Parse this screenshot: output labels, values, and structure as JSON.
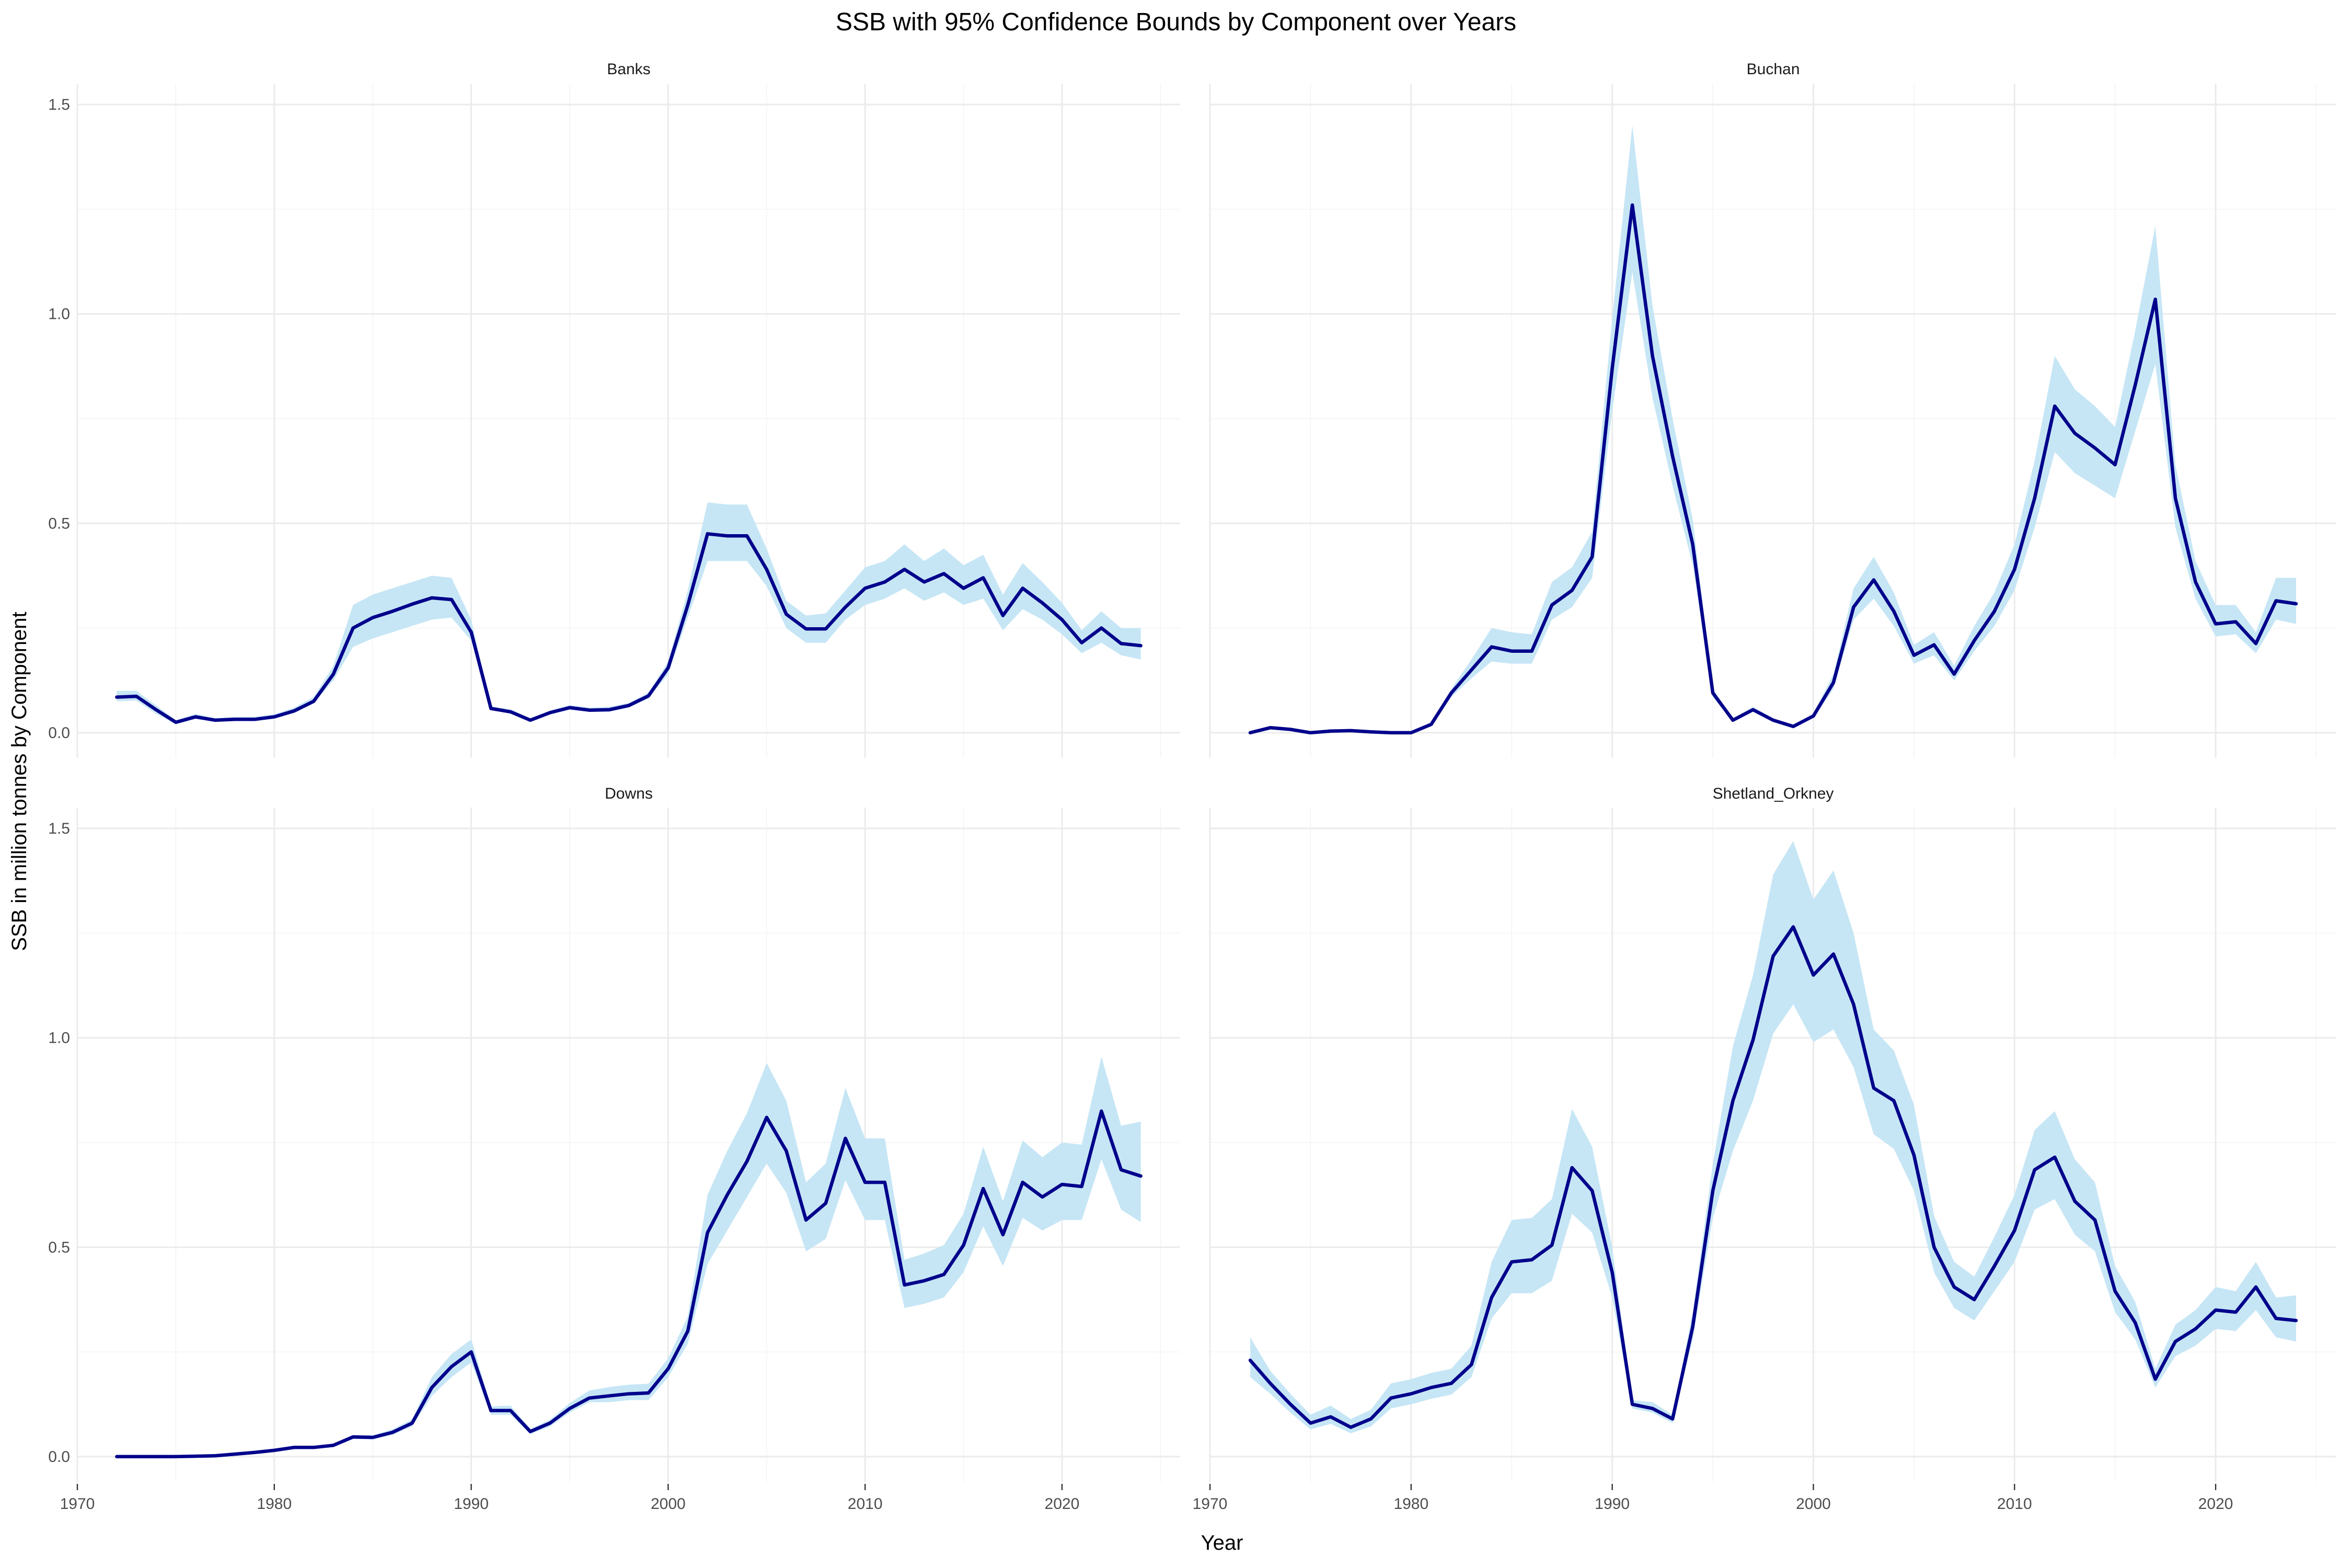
{
  "chart_data": {
    "type": "line",
    "title": "SSB with 95% Confidence Bounds by Component over Years",
    "xlabel": "Year",
    "ylabel": "SSB in million tonnes by Component",
    "xlim": [
      1970,
      2026
    ],
    "ylim": [
      -0.06,
      1.55
    ],
    "x_ticks": [
      1970,
      1980,
      1990,
      2000,
      2010,
      2020
    ],
    "y_ticks": [
      0.0,
      0.5,
      1.0,
      1.5
    ],
    "y_tick_labels": [
      "0.0",
      "0.5",
      "1.0",
      "1.5"
    ],
    "grid": true,
    "colors": {
      "line": "#00008b",
      "band": "#c6e6f5"
    },
    "years": [
      1972,
      1973,
      1974,
      1975,
      1976,
      1977,
      1978,
      1979,
      1980,
      1981,
      1982,
      1983,
      1984,
      1985,
      1986,
      1987,
      1988,
      1989,
      1990,
      1991,
      1992,
      1993,
      1994,
      1995,
      1996,
      1997,
      1998,
      1999,
      2000,
      2001,
      2002,
      2003,
      2004,
      2005,
      2006,
      2007,
      2008,
      2009,
      2010,
      2011,
      2012,
      2013,
      2014,
      2015,
      2016,
      2017,
      2018,
      2019,
      2020,
      2021,
      2022,
      2023,
      2024
    ],
    "panels": [
      {
        "name": "Banks",
        "values": [
          0.085,
          0.087,
          0.055,
          0.025,
          0.038,
          0.03,
          0.032,
          0.032,
          0.038,
          0.052,
          0.075,
          0.14,
          0.25,
          0.275,
          0.29,
          0.307,
          0.322,
          0.318,
          0.24,
          0.058,
          0.05,
          0.03,
          0.048,
          0.06,
          0.054,
          0.055,
          0.065,
          0.088,
          0.155,
          0.305,
          0.475,
          0.47,
          0.47,
          0.39,
          0.283,
          0.248,
          0.248,
          0.3,
          0.345,
          0.36,
          0.39,
          0.36,
          0.38,
          0.345,
          0.37,
          0.28,
          0.345,
          0.31,
          0.27,
          0.215,
          0.25,
          0.213,
          0.208
        ],
        "lower": [
          0.075,
          0.077,
          0.045,
          0.02,
          0.033,
          0.026,
          0.028,
          0.028,
          0.034,
          0.047,
          0.07,
          0.125,
          0.205,
          0.225,
          0.24,
          0.255,
          0.27,
          0.275,
          0.22,
          0.054,
          0.046,
          0.027,
          0.044,
          0.055,
          0.05,
          0.05,
          0.06,
          0.082,
          0.14,
          0.275,
          0.41,
          0.41,
          0.41,
          0.35,
          0.25,
          0.215,
          0.215,
          0.27,
          0.305,
          0.32,
          0.345,
          0.315,
          0.335,
          0.305,
          0.32,
          0.245,
          0.295,
          0.27,
          0.235,
          0.19,
          0.215,
          0.185,
          0.175
        ],
        "upper": [
          0.1,
          0.1,
          0.065,
          0.03,
          0.045,
          0.035,
          0.038,
          0.038,
          0.044,
          0.06,
          0.085,
          0.16,
          0.305,
          0.33,
          0.345,
          0.36,
          0.375,
          0.37,
          0.27,
          0.063,
          0.056,
          0.034,
          0.053,
          0.066,
          0.06,
          0.062,
          0.071,
          0.096,
          0.17,
          0.34,
          0.55,
          0.545,
          0.545,
          0.44,
          0.315,
          0.28,
          0.285,
          0.34,
          0.395,
          0.41,
          0.45,
          0.41,
          0.44,
          0.4,
          0.425,
          0.33,
          0.405,
          0.36,
          0.31,
          0.245,
          0.29,
          0.25,
          0.25
        ]
      },
      {
        "name": "Buchan",
        "values": [
          0.0,
          0.012,
          0.008,
          0.0,
          0.004,
          0.005,
          0.002,
          0.0,
          0.0,
          0.02,
          0.095,
          0.15,
          0.205,
          0.195,
          0.195,
          0.305,
          0.34,
          0.42,
          0.87,
          1.26,
          0.9,
          0.66,
          0.45,
          0.095,
          0.03,
          0.055,
          0.03,
          0.015,
          0.04,
          0.12,
          0.3,
          0.365,
          0.29,
          0.185,
          0.21,
          0.14,
          0.22,
          0.29,
          0.39,
          0.56,
          0.78,
          0.715,
          0.68,
          0.64,
          0.83,
          1.035,
          0.56,
          0.36,
          0.26,
          0.265,
          0.213,
          0.315,
          0.308
        ],
        "lower": [
          0.0,
          0.01,
          0.007,
          0.0,
          0.003,
          0.004,
          0.001,
          0.0,
          0.0,
          0.018,
          0.085,
          0.13,
          0.17,
          0.165,
          0.165,
          0.27,
          0.3,
          0.37,
          0.77,
          1.1,
          0.8,
          0.59,
          0.4,
          0.085,
          0.027,
          0.05,
          0.027,
          0.013,
          0.035,
          0.105,
          0.27,
          0.32,
          0.255,
          0.165,
          0.185,
          0.125,
          0.195,
          0.255,
          0.34,
          0.49,
          0.67,
          0.62,
          0.59,
          0.56,
          0.72,
          0.88,
          0.49,
          0.32,
          0.23,
          0.235,
          0.19,
          0.27,
          0.26
        ],
        "upper": [
          0.0,
          0.014,
          0.01,
          0.0,
          0.005,
          0.006,
          0.003,
          0.0,
          0.0,
          0.023,
          0.105,
          0.175,
          0.25,
          0.24,
          0.235,
          0.36,
          0.395,
          0.48,
          0.99,
          1.45,
          1.02,
          0.75,
          0.51,
          0.105,
          0.034,
          0.062,
          0.034,
          0.017,
          0.046,
          0.14,
          0.345,
          0.42,
          0.335,
          0.21,
          0.24,
          0.16,
          0.255,
          0.335,
          0.45,
          0.65,
          0.9,
          0.82,
          0.78,
          0.73,
          0.96,
          1.21,
          0.64,
          0.41,
          0.305,
          0.305,
          0.24,
          0.37,
          0.37
        ]
      },
      {
        "name": "Downs",
        "values": [
          0.0,
          0.0,
          0.0,
          0.0,
          0.001,
          0.002,
          0.006,
          0.01,
          0.015,
          0.022,
          0.022,
          0.027,
          0.047,
          0.046,
          0.058,
          0.08,
          0.165,
          0.215,
          0.25,
          0.11,
          0.11,
          0.06,
          0.08,
          0.115,
          0.14,
          0.145,
          0.15,
          0.152,
          0.21,
          0.3,
          0.535,
          0.625,
          0.705,
          0.81,
          0.73,
          0.565,
          0.605,
          0.76,
          0.655,
          0.655,
          0.41,
          0.42,
          0.435,
          0.505,
          0.64,
          0.53,
          0.655,
          0.62,
          0.65,
          0.645,
          0.825,
          0.685,
          0.67
        ],
        "lower": [
          0.0,
          0.0,
          0.0,
          0.0,
          0.001,
          0.002,
          0.005,
          0.009,
          0.013,
          0.02,
          0.02,
          0.024,
          0.042,
          0.041,
          0.052,
          0.072,
          0.145,
          0.19,
          0.225,
          0.1,
          0.1,
          0.054,
          0.072,
          0.105,
          0.13,
          0.13,
          0.135,
          0.135,
          0.19,
          0.27,
          0.46,
          0.54,
          0.62,
          0.7,
          0.63,
          0.49,
          0.52,
          0.66,
          0.565,
          0.565,
          0.355,
          0.365,
          0.38,
          0.44,
          0.55,
          0.455,
          0.57,
          0.54,
          0.565,
          0.565,
          0.71,
          0.59,
          0.56
        ],
        "upper": [
          0.0,
          0.0,
          0.0,
          0.0,
          0.001,
          0.002,
          0.007,
          0.011,
          0.017,
          0.024,
          0.025,
          0.03,
          0.052,
          0.051,
          0.065,
          0.089,
          0.19,
          0.245,
          0.28,
          0.12,
          0.122,
          0.066,
          0.088,
          0.128,
          0.158,
          0.166,
          0.172,
          0.174,
          0.235,
          0.335,
          0.625,
          0.73,
          0.82,
          0.94,
          0.85,
          0.655,
          0.7,
          0.88,
          0.76,
          0.76,
          0.47,
          0.485,
          0.505,
          0.58,
          0.74,
          0.61,
          0.755,
          0.715,
          0.75,
          0.745,
          0.955,
          0.79,
          0.8
        ]
      },
      {
        "name": "Shetland_Orkney",
        "values": [
          0.23,
          0.175,
          0.125,
          0.08,
          0.095,
          0.07,
          0.09,
          0.14,
          0.15,
          0.165,
          0.175,
          0.22,
          0.38,
          0.465,
          0.47,
          0.505,
          0.69,
          0.635,
          0.44,
          0.125,
          0.115,
          0.09,
          0.31,
          0.635,
          0.85,
          0.995,
          1.195,
          1.265,
          1.15,
          1.2,
          1.08,
          0.88,
          0.85,
          0.72,
          0.5,
          0.405,
          0.375,
          0.455,
          0.54,
          0.685,
          0.715,
          0.61,
          0.565,
          0.395,
          0.32,
          0.185,
          0.275,
          0.305,
          0.35,
          0.345,
          0.405,
          0.33,
          0.325
        ],
        "lower": [
          0.19,
          0.15,
          0.105,
          0.065,
          0.078,
          0.056,
          0.072,
          0.115,
          0.125,
          0.138,
          0.148,
          0.19,
          0.33,
          0.39,
          0.39,
          0.42,
          0.58,
          0.535,
          0.38,
          0.115,
          0.105,
          0.08,
          0.28,
          0.57,
          0.73,
          0.85,
          1.01,
          1.08,
          0.99,
          1.02,
          0.93,
          0.77,
          0.735,
          0.635,
          0.44,
          0.355,
          0.325,
          0.395,
          0.465,
          0.59,
          0.615,
          0.53,
          0.49,
          0.345,
          0.28,
          0.165,
          0.24,
          0.265,
          0.305,
          0.3,
          0.35,
          0.285,
          0.275
        ],
        "upper": [
          0.285,
          0.205,
          0.15,
          0.1,
          0.122,
          0.09,
          0.112,
          0.175,
          0.185,
          0.2,
          0.21,
          0.265,
          0.465,
          0.565,
          0.57,
          0.615,
          0.83,
          0.74,
          0.5,
          0.135,
          0.13,
          0.1,
          0.345,
          0.7,
          0.98,
          1.15,
          1.39,
          1.47,
          1.33,
          1.4,
          1.25,
          1.02,
          0.97,
          0.84,
          0.575,
          0.465,
          0.43,
          0.525,
          0.625,
          0.78,
          0.825,
          0.71,
          0.655,
          0.455,
          0.37,
          0.21,
          0.315,
          0.35,
          0.405,
          0.395,
          0.465,
          0.38,
          0.385
        ]
      }
    ]
  }
}
